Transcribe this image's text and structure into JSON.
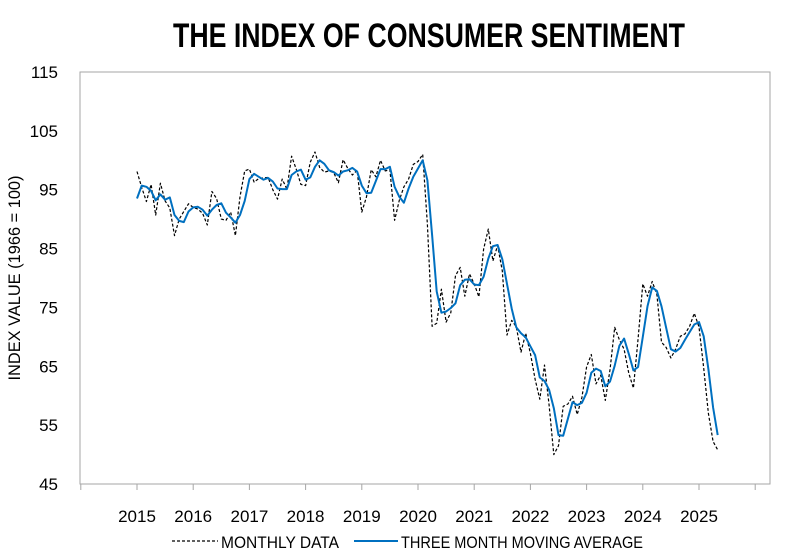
{
  "chart_data": {
    "type": "line",
    "title": "THE INDEX OF CONSUMER SENTIMENT",
    "xlabel": "",
    "ylabel": "INDEX VALUE (1966 = 100)",
    "ylim": [
      45,
      115
    ],
    "yticks": [
      45,
      55,
      65,
      75,
      85,
      95,
      105,
      115
    ],
    "xtick_labels": [
      "2015",
      "2016",
      "2017",
      "2018",
      "2019",
      "2020",
      "2021",
      "2022",
      "2023",
      "2024",
      "2025"
    ],
    "x_start": "2015-01",
    "frequency": "monthly",
    "grid": false,
    "legend": "bottom",
    "series": [
      {
        "name": "MONTHLY DATA",
        "color": "#000000",
        "style": "dashed",
        "values": [
          98.1,
          95.4,
          93.0,
          95.9,
          90.7,
          96.1,
          93.1,
          91.9,
          87.2,
          90.0,
          91.3,
          92.6,
          92.0,
          91.7,
          91.0,
          89.0,
          94.7,
          93.5,
          90.0,
          89.8,
          91.2,
          87.2,
          93.8,
          98.2,
          98.5,
          96.3,
          96.9,
          97.0,
          97.1,
          95.0,
          93.4,
          96.8,
          95.1,
          100.7,
          98.5,
          95.9,
          95.7,
          99.7,
          101.4,
          98.8,
          98.0,
          98.2,
          97.9,
          96.2,
          100.1,
          98.6,
          97.5,
          98.3,
          91.2,
          93.8,
          98.4,
          97.2,
          100.0,
          98.2,
          98.4,
          89.8,
          93.2,
          95.5,
          96.8,
          99.3,
          99.8,
          101.0,
          89.1,
          71.8,
          72.3,
          78.1,
          72.5,
          74.1,
          80.4,
          81.8,
          76.9,
          80.7,
          79.0,
          76.8,
          84.9,
          88.3,
          82.9,
          85.5,
          81.2,
          70.3,
          72.8,
          71.7,
          67.4,
          70.6,
          67.2,
          62.8,
          59.4,
          65.2,
          58.4,
          50.0,
          51.5,
          58.2,
          58.6,
          59.9,
          56.8,
          59.7,
          64.9,
          67.0,
          62.0,
          63.5,
          59.2,
          64.4,
          71.6,
          69.5,
          67.9,
          63.8,
          61.3,
          69.7,
          79.0,
          76.9,
          79.4,
          77.2,
          69.1,
          68.2,
          66.4,
          67.9,
          70.1,
          70.5,
          71.8,
          74.0,
          71.7,
          64.7,
          57.0,
          52.2,
          50.8
        ]
      },
      {
        "name": "THREE MONTH MOVING AVERAGE",
        "color": "#0070C0",
        "style": "solid",
        "values": [
          93.5,
          95.7,
          95.5,
          94.8,
          93.2,
          94.2,
          93.3,
          93.7,
          90.7,
          89.7,
          89.5,
          91.3,
          92.0,
          92.1,
          91.6,
          90.6,
          91.6,
          92.4,
          92.7,
          91.1,
          90.3,
          89.4,
          90.7,
          93.1,
          96.8,
          97.7,
          97.2,
          96.7,
          97.0,
          96.4,
          95.2,
          95.1,
          95.1,
          97.5,
          98.1,
          98.4,
          96.7,
          97.1,
          98.9,
          100.0,
          99.4,
          98.3,
          98.0,
          97.4,
          98.1,
          98.3,
          98.7,
          98.1,
          95.7,
          94.4,
          94.5,
          96.5,
          98.5,
          98.5,
          98.9,
          95.5,
          93.8,
          92.8,
          95.2,
          97.2,
          98.6,
          100.0,
          96.6,
          87.3,
          77.7,
          74.1,
          74.3,
          74.9,
          75.7,
          78.8,
          79.7,
          79.8,
          78.9,
          78.8,
          80.2,
          83.3,
          85.4,
          85.6,
          83.2,
          79.0,
          74.8,
          71.6,
          70.6,
          69.9,
          68.4,
          66.9,
          63.1,
          62.5,
          61.0,
          57.9,
          53.3,
          53.2,
          56.1,
          58.9,
          58.4,
          58.8,
          60.5,
          63.9,
          64.6,
          64.2,
          61.6,
          62.4,
          65.1,
          68.5,
          69.7,
          67.1,
          64.3,
          64.9,
          70.0,
          75.2,
          78.4,
          77.8,
          75.2,
          71.5,
          67.9,
          67.5,
          68.1,
          69.5,
          70.8,
          72.1,
          72.5,
          70.1,
          64.5,
          58.0,
          53.3
        ]
      }
    ]
  }
}
